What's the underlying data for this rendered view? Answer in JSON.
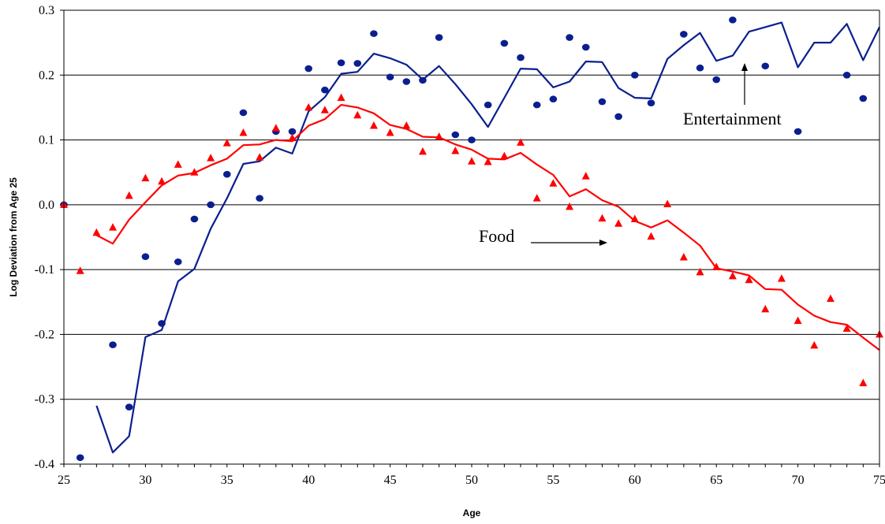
{
  "chart_data": {
    "type": "line",
    "title": "",
    "xlabel": "Age",
    "ylabel": "Log Deviation from Age 25",
    "xlim": [
      25,
      75
    ],
    "ylim": [
      -0.4,
      0.3
    ],
    "x_ticks": [
      25,
      30,
      35,
      40,
      45,
      50,
      55,
      60,
      65,
      70,
      75
    ],
    "y_ticks": [
      "0.3",
      "0.2",
      "0.1",
      "0.0",
      "-0.1",
      "-0.2",
      "-0.3",
      "-0.4"
    ],
    "y_tick_values": [
      0.3,
      0.2,
      0.1,
      0.0,
      -0.1,
      -0.2,
      -0.3,
      -0.4
    ],
    "grid": "horizontal",
    "colors": {
      "entertainment": "#0a1f8f",
      "food": "#ff0000"
    },
    "annotations": [
      {
        "text": "Entertainment",
        "points_to_series": "Entertainment"
      },
      {
        "text": "Food",
        "points_to_series": "Food"
      }
    ],
    "series": [
      {
        "key": "entertainment_points",
        "marker": "circle",
        "color": "#0a1f8f",
        "x": [
          25,
          26,
          28,
          29,
          30,
          31,
          32,
          33,
          34,
          35,
          36,
          37,
          38,
          39,
          40,
          41,
          42,
          43,
          44,
          45,
          46,
          47,
          48,
          49,
          50,
          51,
          52,
          53,
          54,
          55,
          56,
          57,
          58,
          59,
          60,
          61,
          63,
          64,
          65,
          66,
          68,
          70,
          73,
          74
        ],
        "y": [
          0.0,
          -0.39,
          -0.216,
          -0.312,
          -0.08,
          -0.183,
          -0.088,
          -0.022,
          0.0,
          0.047,
          0.142,
          0.01,
          0.113,
          0.113,
          0.21,
          0.177,
          0.219,
          0.218,
          0.264,
          0.197,
          0.19,
          0.192,
          0.258,
          0.108,
          0.1,
          0.154,
          0.249,
          0.227,
          0.154,
          0.163,
          0.258,
          0.243,
          0.159,
          0.136,
          0.2,
          0.157,
          0.263,
          0.211,
          0.193,
          0.285,
          0.214,
          0.113,
          0.2,
          0.164
        ]
      },
      {
        "key": "entertainment_smooth",
        "marker": "line",
        "color": "#0a1f8f",
        "x": [
          27,
          28,
          29,
          30,
          31,
          32,
          33,
          34,
          35,
          36,
          37,
          38,
          39,
          40,
          41,
          42,
          43,
          44,
          45,
          46,
          47,
          48,
          49,
          50,
          51,
          52,
          53,
          54,
          55,
          56,
          57,
          58,
          59,
          60,
          61,
          62,
          63,
          64,
          65,
          66,
          67,
          68,
          69,
          70,
          71,
          72,
          73,
          74,
          75
        ],
        "y": [
          -0.31,
          -0.382,
          -0.357,
          -0.204,
          -0.193,
          -0.118,
          -0.099,
          -0.037,
          0.01,
          0.063,
          0.067,
          0.088,
          0.079,
          0.144,
          0.166,
          0.202,
          0.205,
          0.233,
          0.226,
          0.216,
          0.193,
          0.214,
          0.186,
          0.155,
          0.12,
          0.165,
          0.21,
          0.209,
          0.181,
          0.19,
          0.221,
          0.22,
          0.18,
          0.165,
          0.164,
          0.225,
          0.246,
          0.265,
          0.222,
          0.23,
          0.267,
          0.274,
          0.281,
          0.212,
          0.25,
          0.25,
          0.279,
          0.223,
          0.274
        ]
      },
      {
        "key": "food_points",
        "marker": "triangle",
        "color": "#ff0000",
        "x": [
          25,
          26,
          27,
          28,
          29,
          30,
          31,
          32,
          33,
          34,
          35,
          36,
          37,
          38,
          39,
          40,
          41,
          42,
          43,
          44,
          45,
          46,
          47,
          48,
          49,
          50,
          51,
          52,
          53,
          54,
          55,
          56,
          57,
          58,
          59,
          60,
          61,
          62,
          63,
          64,
          65,
          66,
          67,
          68,
          69,
          70,
          71,
          72,
          73,
          74,
          75
        ],
        "y": [
          0.0,
          -0.102,
          -0.043,
          -0.035,
          0.014,
          0.041,
          0.036,
          0.062,
          0.05,
          0.072,
          0.095,
          0.111,
          0.073,
          0.118,
          0.103,
          0.15,
          0.146,
          0.165,
          0.138,
          0.122,
          0.111,
          0.122,
          0.082,
          0.105,
          0.083,
          0.067,
          0.066,
          0.075,
          0.096,
          0.01,
          0.033,
          -0.003,
          0.044,
          -0.021,
          -0.029,
          -0.022,
          -0.049,
          0.001,
          -0.081,
          -0.104,
          -0.096,
          -0.11,
          -0.116,
          -0.161,
          -0.114,
          -0.179,
          -0.217,
          -0.145,
          -0.191,
          -0.275,
          -0.2
        ]
      },
      {
        "key": "food_smooth",
        "marker": "line",
        "color": "#ff0000",
        "x": [
          27,
          28,
          29,
          30,
          31,
          32,
          33,
          34,
          35,
          36,
          37,
          38,
          39,
          40,
          41,
          42,
          43,
          44,
          45,
          46,
          47,
          48,
          49,
          50,
          51,
          52,
          53,
          54,
          55,
          56,
          57,
          58,
          59,
          60,
          61,
          62,
          63,
          64,
          65,
          66,
          67,
          68,
          69,
          70,
          71,
          72,
          73,
          74,
          75
        ],
        "y": [
          -0.047,
          -0.06,
          -0.023,
          0.004,
          0.03,
          0.045,
          0.049,
          0.061,
          0.071,
          0.092,
          0.093,
          0.1,
          0.098,
          0.122,
          0.132,
          0.154,
          0.15,
          0.141,
          0.123,
          0.117,
          0.105,
          0.104,
          0.093,
          0.085,
          0.071,
          0.07,
          0.08,
          0.062,
          0.046,
          0.013,
          0.024,
          0.007,
          -0.003,
          -0.025,
          -0.035,
          -0.024,
          -0.043,
          -0.063,
          -0.098,
          -0.103,
          -0.109,
          -0.13,
          -0.131,
          -0.154,
          -0.171,
          -0.181,
          -0.185,
          -0.205,
          -0.224
        ]
      }
    ]
  }
}
